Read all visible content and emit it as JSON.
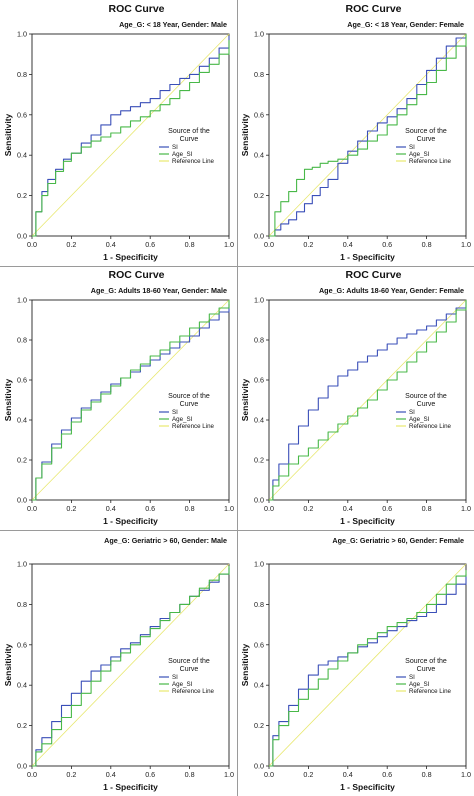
{
  "chart_data": [
    {
      "type": "line",
      "title": "ROC Curve",
      "subtitle": "Age_G: < 18 Year, Gender: Male",
      "xlabel": "1 - Specificity",
      "ylabel": "Sensitivity",
      "xlim": [
        0,
        1
      ],
      "ylim": [
        0,
        1
      ],
      "xticks": [
        "0.0",
        "0.2",
        "0.4",
        "0.6",
        "0.8",
        "1.0"
      ],
      "yticks": [
        "0.0",
        "0.2",
        "0.4",
        "0.6",
        "0.8",
        "1.0"
      ],
      "grid": false,
      "legend": {
        "title": "Source of the Curve",
        "placement": "center-right"
      },
      "series": [
        {
          "name": "SI",
          "color": "#3a4fb8",
          "x": [
            0,
            0.02,
            0.05,
            0.08,
            0.12,
            0.16,
            0.2,
            0.25,
            0.3,
            0.35,
            0.4,
            0.45,
            0.5,
            0.55,
            0.6,
            0.65,
            0.7,
            0.75,
            0.8,
            0.85,
            0.9,
            0.95,
            1
          ],
          "y": [
            0,
            0.12,
            0.22,
            0.28,
            0.33,
            0.38,
            0.41,
            0.46,
            0.5,
            0.55,
            0.6,
            0.62,
            0.64,
            0.66,
            0.68,
            0.72,
            0.75,
            0.78,
            0.8,
            0.84,
            0.88,
            0.93,
            0.99
          ]
        },
        {
          "name": "Age_SI",
          "color": "#48b848",
          "x": [
            0,
            0.02,
            0.05,
            0.08,
            0.12,
            0.16,
            0.2,
            0.25,
            0.3,
            0.35,
            0.4,
            0.45,
            0.5,
            0.55,
            0.6,
            0.65,
            0.7,
            0.75,
            0.8,
            0.85,
            0.9,
            0.95,
            1
          ],
          "y": [
            0,
            0.12,
            0.2,
            0.26,
            0.32,
            0.37,
            0.41,
            0.44,
            0.47,
            0.49,
            0.51,
            0.54,
            0.57,
            0.59,
            0.62,
            0.65,
            0.68,
            0.72,
            0.76,
            0.81,
            0.85,
            0.9,
            0.97
          ]
        },
        {
          "name": "Reference Line",
          "color": "#e8e870",
          "x": [
            0,
            1
          ],
          "y": [
            0,
            1
          ]
        }
      ]
    },
    {
      "type": "line",
      "title": "ROC Curve",
      "subtitle": "Age_G: < 18 Year, Gender: Female",
      "xlabel": "1 - Specificity",
      "ylabel": "Sensitivity",
      "xlim": [
        0,
        1
      ],
      "ylim": [
        0,
        1
      ],
      "xticks": [
        "0.0",
        "0.2",
        "0.4",
        "0.6",
        "0.8",
        "1.0"
      ],
      "yticks": [
        "0.0",
        "0.2",
        "0.4",
        "0.6",
        "0.8",
        "1.0"
      ],
      "grid": false,
      "legend": {
        "title": "Source of the Curve",
        "placement": "center-right"
      },
      "series": [
        {
          "name": "SI",
          "color": "#3a4fb8",
          "x": [
            0,
            0.03,
            0.06,
            0.1,
            0.14,
            0.18,
            0.22,
            0.26,
            0.3,
            0.35,
            0.4,
            0.45,
            0.5,
            0.55,
            0.6,
            0.65,
            0.7,
            0.75,
            0.8,
            0.85,
            0.9,
            0.95,
            1
          ],
          "y": [
            0,
            0.03,
            0.06,
            0.08,
            0.12,
            0.16,
            0.2,
            0.24,
            0.28,
            0.36,
            0.42,
            0.47,
            0.52,
            0.56,
            0.59,
            0.63,
            0.68,
            0.75,
            0.82,
            0.88,
            0.94,
            0.98,
            1
          ]
        },
        {
          "name": "Age_SI",
          "color": "#48b848",
          "x": [
            0,
            0.03,
            0.06,
            0.1,
            0.14,
            0.18,
            0.22,
            0.26,
            0.3,
            0.35,
            0.4,
            0.45,
            0.5,
            0.55,
            0.6,
            0.65,
            0.7,
            0.75,
            0.8,
            0.85,
            0.9,
            0.95,
            1
          ],
          "y": [
            0,
            0.12,
            0.17,
            0.22,
            0.28,
            0.33,
            0.34,
            0.36,
            0.37,
            0.38,
            0.4,
            0.43,
            0.47,
            0.5,
            0.55,
            0.6,
            0.65,
            0.7,
            0.76,
            0.82,
            0.88,
            0.94,
            1
          ]
        },
        {
          "name": "Reference Line",
          "color": "#e8e870",
          "x": [
            0,
            1
          ],
          "y": [
            0,
            1
          ]
        }
      ]
    },
    {
      "type": "line",
      "title": "ROC Curve",
      "subtitle": "Age_G: Adults 18-60 Year, Gender: Male",
      "xlabel": "1 - Specificity",
      "ylabel": "Sensitivity",
      "xlim": [
        0,
        1
      ],
      "ylim": [
        0,
        1
      ],
      "xticks": [
        "0.0",
        "0.2",
        "0.4",
        "0.6",
        "0.8",
        "1.0"
      ],
      "yticks": [
        "0.0",
        "0.2",
        "0.4",
        "0.6",
        "0.8",
        "1.0"
      ],
      "grid": false,
      "legend": {
        "title": "Source of the Curve",
        "placement": "center-right"
      },
      "series": [
        {
          "name": "SI",
          "color": "#3a4fb8",
          "x": [
            0,
            0.02,
            0.05,
            0.1,
            0.15,
            0.2,
            0.25,
            0.3,
            0.35,
            0.4,
            0.45,
            0.5,
            0.55,
            0.6,
            0.65,
            0.7,
            0.75,
            0.8,
            0.85,
            0.9,
            0.95,
            1
          ],
          "y": [
            0,
            0.11,
            0.19,
            0.28,
            0.35,
            0.41,
            0.46,
            0.5,
            0.54,
            0.58,
            0.61,
            0.64,
            0.67,
            0.7,
            0.73,
            0.76,
            0.79,
            0.82,
            0.86,
            0.9,
            0.94,
            0.98
          ]
        },
        {
          "name": "Age_SI",
          "color": "#48b848",
          "x": [
            0,
            0.02,
            0.05,
            0.1,
            0.15,
            0.2,
            0.25,
            0.3,
            0.35,
            0.4,
            0.45,
            0.5,
            0.55,
            0.6,
            0.65,
            0.7,
            0.75,
            0.8,
            0.85,
            0.9,
            0.95,
            1
          ],
          "y": [
            0,
            0.11,
            0.18,
            0.26,
            0.33,
            0.39,
            0.45,
            0.49,
            0.53,
            0.57,
            0.61,
            0.65,
            0.68,
            0.72,
            0.75,
            0.79,
            0.82,
            0.86,
            0.89,
            0.93,
            0.96,
            1
          ]
        },
        {
          "name": "Reference Line",
          "color": "#e8e870",
          "x": [
            0,
            1
          ],
          "y": [
            0,
            1
          ]
        }
      ]
    },
    {
      "type": "line",
      "title": "ROC Curve",
      "subtitle": "Age_G: Adults 18-60 Year, Gender: Female",
      "xlabel": "1 - Specificity",
      "ylabel": "Sensitivity",
      "xlim": [
        0,
        1
      ],
      "ylim": [
        0,
        1
      ],
      "xticks": [
        "0.0",
        "0.2",
        "0.4",
        "0.6",
        "0.8",
        "1.0"
      ],
      "yticks": [
        "0.0",
        "0.2",
        "0.4",
        "0.6",
        "0.8",
        "1.0"
      ],
      "grid": false,
      "legend": {
        "title": "Source of the Curve",
        "placement": "center-right"
      },
      "series": [
        {
          "name": "SI",
          "color": "#3a4fb8",
          "x": [
            0,
            0.02,
            0.05,
            0.1,
            0.15,
            0.2,
            0.25,
            0.3,
            0.35,
            0.4,
            0.45,
            0.5,
            0.55,
            0.6,
            0.65,
            0.7,
            0.75,
            0.8,
            0.85,
            0.9,
            0.95,
            1
          ],
          "y": [
            0,
            0.1,
            0.18,
            0.28,
            0.37,
            0.45,
            0.51,
            0.57,
            0.62,
            0.65,
            0.69,
            0.72,
            0.75,
            0.78,
            0.81,
            0.83,
            0.85,
            0.87,
            0.9,
            0.93,
            0.96,
            1
          ]
        },
        {
          "name": "Age_SI",
          "color": "#48b848",
          "x": [
            0,
            0.02,
            0.05,
            0.1,
            0.15,
            0.2,
            0.25,
            0.3,
            0.35,
            0.4,
            0.45,
            0.5,
            0.55,
            0.6,
            0.65,
            0.7,
            0.75,
            0.8,
            0.85,
            0.9,
            0.95,
            1
          ],
          "y": [
            0,
            0.07,
            0.12,
            0.18,
            0.22,
            0.26,
            0.3,
            0.34,
            0.38,
            0.42,
            0.46,
            0.5,
            0.55,
            0.6,
            0.64,
            0.69,
            0.74,
            0.79,
            0.84,
            0.89,
            0.95,
            1
          ]
        },
        {
          "name": "Reference Line",
          "color": "#e8e870",
          "x": [
            0,
            1
          ],
          "y": [
            0,
            1
          ]
        }
      ]
    },
    {
      "type": "line",
      "title": "",
      "subtitle": "Age_G: Geriatric > 60, Gender: Male",
      "xlabel": "1 - Specificity",
      "ylabel": "Sensitivity",
      "xlim": [
        0,
        1
      ],
      "ylim": [
        0,
        1
      ],
      "xticks": [
        "0.0",
        "0.2",
        "0.4",
        "0.6",
        "0.8",
        "1.0"
      ],
      "yticks": [
        "0.0",
        "0.2",
        "0.4",
        "0.6",
        "0.8",
        "1.0"
      ],
      "grid": false,
      "legend": {
        "title": "Source of the Curve",
        "placement": "center-right"
      },
      "series": [
        {
          "name": "SI",
          "color": "#3a4fb8",
          "x": [
            0,
            0.02,
            0.05,
            0.1,
            0.15,
            0.2,
            0.25,
            0.3,
            0.35,
            0.4,
            0.45,
            0.5,
            0.55,
            0.6,
            0.65,
            0.7,
            0.75,
            0.8,
            0.85,
            0.9,
            0.95,
            1
          ],
          "y": [
            0,
            0.08,
            0.14,
            0.22,
            0.3,
            0.36,
            0.42,
            0.47,
            0.5,
            0.54,
            0.58,
            0.61,
            0.65,
            0.69,
            0.73,
            0.76,
            0.8,
            0.84,
            0.87,
            0.91,
            0.95,
            0.98
          ]
        },
        {
          "name": "Age_SI",
          "color": "#48b848",
          "x": [
            0,
            0.02,
            0.05,
            0.1,
            0.15,
            0.2,
            0.25,
            0.3,
            0.35,
            0.4,
            0.45,
            0.5,
            0.55,
            0.6,
            0.65,
            0.7,
            0.75,
            0.8,
            0.85,
            0.9,
            0.95,
            1
          ],
          "y": [
            0,
            0.07,
            0.11,
            0.18,
            0.24,
            0.3,
            0.36,
            0.42,
            0.47,
            0.52,
            0.56,
            0.6,
            0.64,
            0.68,
            0.72,
            0.76,
            0.8,
            0.84,
            0.88,
            0.92,
            0.95,
            0.99
          ]
        },
        {
          "name": "Reference Line",
          "color": "#e8e870",
          "x": [
            0,
            1
          ],
          "y": [
            0,
            1
          ]
        }
      ]
    },
    {
      "type": "line",
      "title": "",
      "subtitle": "Age_G: Geriatric > 60, Gender: Female",
      "xlabel": "1 - Specificity",
      "ylabel": "Sensitivity",
      "xlim": [
        0,
        1
      ],
      "ylim": [
        0,
        1
      ],
      "xticks": [
        "0.0",
        "0.2",
        "0.4",
        "0.6",
        "0.8",
        "1.0"
      ],
      "yticks": [
        "0.0",
        "0.2",
        "0.4",
        "0.6",
        "0.8",
        "1.0"
      ],
      "grid": false,
      "legend": {
        "title": "Source of the Curve",
        "placement": "center-right"
      },
      "series": [
        {
          "name": "SI",
          "color": "#3a4fb8",
          "x": [
            0,
            0.02,
            0.05,
            0.1,
            0.15,
            0.2,
            0.25,
            0.3,
            0.35,
            0.4,
            0.45,
            0.5,
            0.55,
            0.6,
            0.65,
            0.7,
            0.75,
            0.8,
            0.85,
            0.9,
            0.95,
            1
          ],
          "y": [
            0,
            0.15,
            0.22,
            0.3,
            0.38,
            0.45,
            0.5,
            0.52,
            0.54,
            0.56,
            0.59,
            0.61,
            0.64,
            0.67,
            0.69,
            0.72,
            0.74,
            0.76,
            0.8,
            0.85,
            0.9,
            0.95
          ]
        },
        {
          "name": "Age_SI",
          "color": "#48b848",
          "x": [
            0,
            0.02,
            0.05,
            0.1,
            0.15,
            0.2,
            0.25,
            0.3,
            0.35,
            0.4,
            0.45,
            0.5,
            0.55,
            0.6,
            0.65,
            0.7,
            0.75,
            0.8,
            0.85,
            0.9,
            0.95,
            1
          ],
          "y": [
            0,
            0.13,
            0.2,
            0.27,
            0.33,
            0.38,
            0.43,
            0.48,
            0.52,
            0.56,
            0.6,
            0.63,
            0.66,
            0.69,
            0.71,
            0.73,
            0.76,
            0.8,
            0.85,
            0.9,
            0.94,
            0.97
          ]
        },
        {
          "name": "Reference Line",
          "color": "#e8e870",
          "x": [
            0,
            1
          ],
          "y": [
            0,
            1
          ]
        }
      ]
    }
  ]
}
